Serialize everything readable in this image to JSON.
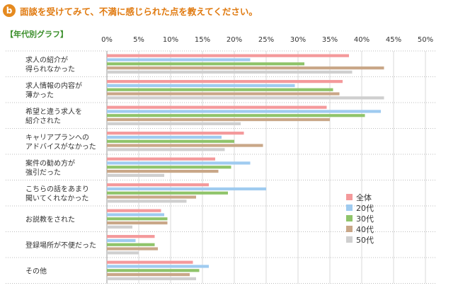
{
  "header": {
    "badge": "b",
    "title": "面談を受けてみて、不満に感じられた点を教えてください。"
  },
  "subtitle": "【年代別グラフ】",
  "chart_data": {
    "type": "bar",
    "orientation": "horizontal",
    "x_range": [
      0,
      50
    ],
    "x_unit": "%",
    "tick_labels": [
      "0%",
      "5%",
      "10%",
      "15%",
      "20%",
      "25%",
      "30%",
      "35%",
      "40%",
      "45%",
      "50%"
    ],
    "categories": [
      [
        "求人の紹介が",
        "得られなかった"
      ],
      [
        "求人情報の内容が",
        "薄かった"
      ],
      [
        "希望と違う求人を",
        "紹介された"
      ],
      [
        "キャリアプランへの",
        "アドバイスがなかった"
      ],
      [
        "案件の勧め方が",
        "強引だった"
      ],
      [
        "こちらの話をあまり",
        "聞いてくれなかった"
      ],
      [
        "お説教をされた"
      ],
      [
        "登録場所が不便だった"
      ],
      [
        "その他"
      ]
    ],
    "series": [
      {
        "name": "全体",
        "color": "#f4999b",
        "values": [
          38.0,
          37.0,
          34.5,
          21.5,
          17.0,
          16.0,
          8.5,
          7.5,
          13.5
        ]
      },
      {
        "name": "20代",
        "color": "#9fcbf0",
        "values": [
          22.5,
          29.5,
          43.0,
          18.0,
          22.5,
          25.0,
          9.0,
          4.5,
          16.0
        ]
      },
      {
        "name": "30代",
        "color": "#8fc46a",
        "values": [
          31.0,
          35.5,
          40.5,
          20.0,
          19.5,
          19.0,
          9.5,
          7.5,
          14.5
        ]
      },
      {
        "name": "40代",
        "color": "#c9a788",
        "values": [
          43.5,
          36.5,
          35.0,
          24.5,
          17.5,
          14.0,
          9.5,
          8.0,
          13.0
        ]
      },
      {
        "name": "50代",
        "color": "#cfcfcf",
        "values": [
          38.5,
          43.5,
          21.0,
          18.5,
          9.0,
          12.5,
          4.0,
          5.0,
          14.0
        ]
      }
    ],
    "grid": true,
    "legend_position": "bottom-right"
  }
}
